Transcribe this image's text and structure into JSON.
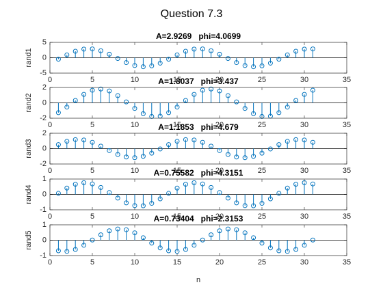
{
  "title": "Question 7.3",
  "xlabel": "n",
  "chart_data": [
    {
      "type": "stem",
      "title": "A=2.9269   phi=4.0699",
      "ylabel": "rand1",
      "color": "#0072bd",
      "x": [
        1,
        2,
        3,
        4,
        5,
        6,
        7,
        8,
        9,
        10,
        11,
        12,
        13,
        14,
        15,
        16,
        17,
        18,
        19,
        20,
        21,
        22,
        23,
        24,
        25,
        26,
        27,
        28,
        29,
        30,
        31
      ],
      "values": [
        -0.47,
        0.93,
        2.11,
        2.81,
        2.87,
        2.27,
        1.14,
        -0.24,
        -1.57,
        -2.54,
        -2.93,
        -2.64,
        -1.76,
        -0.47,
        0.93,
        2.11,
        2.81,
        2.87,
        2.27,
        1.14,
        -0.24,
        -1.57,
        -2.54,
        -2.93,
        -2.64,
        -1.76,
        -0.47,
        0.93,
        2.11,
        2.81,
        2.87
      ],
      "xlim": [
        0,
        35
      ],
      "xticks": [
        0,
        5,
        10,
        15,
        20,
        25,
        30,
        35
      ],
      "ylim": [
        -5,
        5
      ],
      "yticks": [
        -5,
        0,
        5
      ]
    },
    {
      "type": "stem",
      "title": "A=1.8037   phi=3.437",
      "ylabel": "rand2",
      "color": "#0072bd",
      "x": [
        1,
        2,
        3,
        4,
        5,
        6,
        7,
        8,
        9,
        10,
        11,
        12,
        13,
        14,
        15,
        16,
        17,
        18,
        19,
        20,
        21,
        22,
        23,
        24,
        25,
        26,
        27,
        28,
        29,
        30,
        31
      ],
      "values": [
        -1.28,
        -0.55,
        0.31,
        1.1,
        1.64,
        1.8,
        1.55,
        0.94,
        0.12,
        -0.73,
        -1.41,
        -1.77,
        -1.73,
        -1.28,
        -0.55,
        0.31,
        1.1,
        1.64,
        1.8,
        1.55,
        0.94,
        0.12,
        -0.73,
        -1.41,
        -1.77,
        -1.73,
        -1.28,
        -0.55,
        0.31,
        1.1,
        1.64
      ],
      "xlim": [
        0,
        35
      ],
      "xticks": [
        0,
        5,
        10,
        15,
        20,
        25,
        30,
        35
      ],
      "ylim": [
        -2,
        2
      ],
      "yticks": [
        -2,
        0,
        2
      ]
    },
    {
      "type": "stem",
      "title": "A=1.1853   phi=4.679",
      "ylabel": "rand3",
      "color": "#0072bd",
      "x": [
        1,
        2,
        3,
        4,
        5,
        6,
        7,
        8,
        9,
        10,
        11,
        12,
        13,
        14,
        15,
        16,
        17,
        18,
        19,
        20,
        21,
        22,
        23,
        24,
        25,
        26,
        27,
        28,
        29,
        30,
        31
      ],
      "values": [
        0.52,
        0.95,
        1.17,
        1.12,
        0.82,
        0.32,
        -0.25,
        -0.76,
        -1.09,
        -1.18,
        -1.0,
        -0.59,
        -0.04,
        0.52,
        0.95,
        1.17,
        1.12,
        0.82,
        0.32,
        -0.25,
        -0.76,
        -1.09,
        -1.18,
        -1.0,
        -0.59,
        -0.04,
        0.52,
        0.95,
        1.17,
        1.12,
        0.82
      ],
      "xlim": [
        0,
        35
      ],
      "xticks": [
        0,
        5,
        10,
        15,
        20,
        25,
        30,
        35
      ],
      "ylim": [
        -2,
        2
      ],
      "yticks": [
        -2,
        0,
        2
      ]
    },
    {
      "type": "stem",
      "title": "A=0.75582   phi=4.3151",
      "ylabel": "rand4",
      "color": "#0072bd",
      "x": [
        1,
        2,
        3,
        4,
        5,
        6,
        7,
        8,
        9,
        10,
        11,
        12,
        13,
        14,
        15,
        16,
        17,
        18,
        19,
        20,
        21,
        22,
        23,
        24,
        25,
        26,
        27,
        28,
        29,
        30,
        31
      ],
      "values": [
        0.07,
        0.41,
        0.66,
        0.76,
        0.68,
        0.45,
        0.12,
        -0.24,
        -0.55,
        -0.73,
        -0.74,
        -0.58,
        -0.29,
        0.07,
        0.41,
        0.66,
        0.76,
        0.68,
        0.45,
        0.12,
        -0.24,
        -0.55,
        -0.73,
        -0.74,
        -0.58,
        -0.29,
        0.07,
        0.41,
        0.66,
        0.76,
        0.68
      ],
      "xlim": [
        0,
        35
      ],
      "xticks": [
        0,
        5,
        10,
        15,
        20,
        25,
        30,
        35
      ],
      "ylim": [
        -1,
        1
      ],
      "yticks": [
        -1,
        0,
        1
      ]
    },
    {
      "type": "stem",
      "title": "A=0.73404   phi=2.3153",
      "ylabel": "rand5",
      "color": "#0072bd",
      "x": [
        1,
        2,
        3,
        4,
        5,
        6,
        7,
        8,
        9,
        10,
        11,
        12,
        13,
        14,
        15,
        16,
        17,
        18,
        19,
        20,
        21,
        22,
        23,
        24,
        25,
        26,
        27,
        28,
        29,
        30,
        31
      ],
      "values": [
        -0.69,
        -0.73,
        -0.6,
        -0.33,
        0.01,
        0.35,
        0.61,
        0.73,
        0.68,
        0.48,
        0.16,
        -0.19,
        -0.5,
        -0.69,
        -0.73,
        -0.6,
        -0.33,
        0.01,
        0.35,
        0.61,
        0.73,
        0.68,
        0.48,
        0.16,
        -0.19,
        -0.5,
        -0.69,
        -0.73,
        -0.6,
        -0.33,
        0.01
      ],
      "xlim": [
        0,
        35
      ],
      "xticks": [
        0,
        5,
        10,
        15,
        20,
        25,
        30,
        35
      ],
      "ylim": [
        -1,
        1
      ],
      "yticks": [
        -1,
        0,
        1
      ]
    }
  ]
}
